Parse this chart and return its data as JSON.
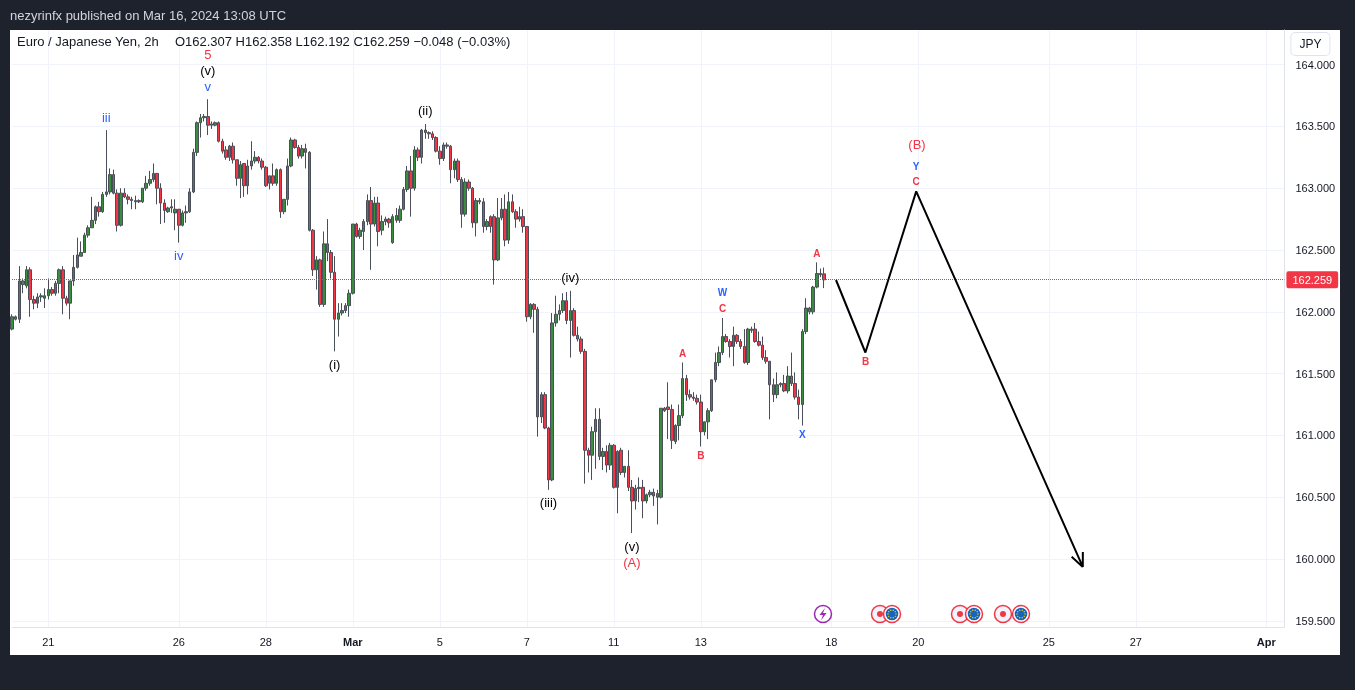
{
  "chart_data": {
    "type": "candlestick",
    "title": "Euro / Japanese Yen, 2h",
    "subtitle": "O162.307 H162.358 L162.192 C162.259 −0.048 (−0.03%)",
    "ylabel": "JPY",
    "annotations": [
      "nezyrinfx published on Mar 16, 2024 13:08 UTC",
      {
        "text": "iii",
        "y": 163.47
      },
      {
        "text": "iv",
        "y": 162.56
      },
      {
        "text": "v",
        "y": 163.72
      },
      {
        "text": "(v)",
        "y": 163.72
      },
      {
        "text": "5",
        "y": 163.72
      },
      {
        "text": "(i)",
        "y": 161.68
      },
      {
        "text": "(ii)",
        "y": 163.52
      },
      {
        "text": "(iii)",
        "y": 160.56
      },
      {
        "text": "(iv)",
        "y": 162.17
      },
      {
        "text": "(v)",
        "y": 160.21
      },
      {
        "text": "(A)",
        "y": 160.21
      },
      {
        "text": "A",
        "y": 161.59
      },
      {
        "text": "B",
        "y": 160.91
      },
      {
        "text": "C",
        "y": 161.95
      },
      {
        "text": "W",
        "y": 161.95
      },
      {
        "text": "X",
        "y": 161.08
      },
      {
        "text": "A",
        "y": 162.4
      },
      "B",
      "C",
      "Y",
      "(B)"
    ],
    "categories": [
      null,
      null,
      null,
      null,
      null,
      null,
      null,
      null,
      null,
      null,
      "21",
      null,
      null,
      null,
      null,
      null,
      null,
      null,
      null,
      null,
      null,
      null,
      null,
      null,
      null,
      null,
      null,
      null,
      null,
      null,
      null,
      null,
      null,
      null,
      null,
      null,
      null,
      null,
      null,
      null,
      null,
      null,
      null,
      null,
      null,
      null,
      "26",
      null,
      null,
      null,
      null,
      null,
      null,
      null,
      null,
      null,
      null,
      null,
      null,
      null,
      null,
      null,
      null,
      null,
      null,
      null,
      null,
      null,
      null,
      null,
      "28",
      null,
      null,
      null,
      null,
      null,
      null,
      null,
      null,
      null,
      null,
      null,
      null,
      null,
      null,
      null,
      null,
      null,
      null,
      null,
      null,
      null,
      null,
      null,
      "Mar",
      null,
      null,
      null,
      null,
      null,
      null,
      null,
      null,
      null,
      null,
      null,
      null,
      null,
      null,
      null,
      null,
      null,
      null,
      null,
      null,
      null,
      null,
      null,
      "5",
      null,
      null,
      null,
      null,
      null,
      null,
      null,
      null,
      null,
      null,
      null,
      null,
      null,
      null,
      null,
      null,
      null,
      null,
      null,
      null,
      null,
      null,
      null,
      "7",
      null,
      null,
      null,
      null,
      null,
      null,
      null,
      null,
      null,
      null,
      null,
      null,
      null,
      null,
      null,
      null,
      null,
      null,
      null,
      null,
      null,
      null,
      null,
      "11",
      null,
      null,
      null,
      null,
      null,
      null,
      null,
      null,
      null,
      null,
      null,
      null,
      null,
      null,
      null,
      null,
      null,
      null,
      null,
      null,
      null,
      null,
      null,
      "13",
      null,
      null,
      null,
      null,
      null,
      null,
      null,
      null,
      null,
      null,
      null,
      null,
      null,
      null,
      null,
      null,
      null,
      null,
      null,
      null,
      null,
      null,
      null,
      null,
      null,
      null,
      null,
      null,
      null,
      null,
      null,
      null,
      null,
      null,
      null,
      "18",
      null,
      null,
      null,
      null,
      null,
      null,
      null,
      null,
      null,
      null,
      null,
      null,
      null,
      null,
      null,
      null,
      null,
      null,
      null,
      null,
      null,
      null,
      null,
      "20",
      null,
      null,
      null,
      null,
      null,
      null,
      null,
      null,
      null,
      null,
      null,
      null,
      null,
      null,
      null,
      null,
      null,
      null,
      null,
      null,
      null,
      null,
      null,
      null,
      null,
      null,
      null,
      null,
      null,
      null,
      null,
      null,
      null,
      null,
      null,
      "25",
      null,
      null,
      null,
      null,
      null,
      null,
      null,
      null,
      null,
      null,
      null,
      null,
      null,
      null,
      null,
      null,
      null,
      null,
      null,
      null,
      null,
      null,
      null,
      "27",
      null,
      null,
      null,
      null,
      null,
      null,
      null,
      null,
      null,
      null,
      null,
      null,
      null,
      null,
      null,
      null,
      null,
      null,
      null,
      null,
      null,
      null,
      null,
      null,
      null,
      null,
      null,
      null,
      null,
      null,
      null,
      null,
      null,
      null,
      null,
      "Apr",
      null,
      null,
      null,
      null,
      null
    ],
    "ohlc": [
      [
        161.86,
        161.98,
        161.85,
        161.96
      ],
      [
        161.96,
        161.97,
        161.93,
        161.94
      ],
      [
        161.94,
        162.37,
        161.91,
        162.25
      ],
      [
        162.22,
        162.27,
        162.15,
        162.25
      ],
      [
        162.21,
        162.37,
        162.19,
        162.34
      ],
      [
        162.34,
        162.36,
        161.96,
        162.1
      ],
      [
        162.1,
        162.13,
        162.02,
        162.07
      ],
      [
        162.07,
        162.15,
        162.03,
        162.12
      ],
      [
        162.12,
        162.15,
        162.08,
        162.13
      ],
      [
        162.11,
        162.19,
        162.03,
        162.13
      ],
      [
        162.13,
        162.27,
        162.1,
        162.18
      ],
      [
        162.18,
        162.2,
        162.13,
        162.15
      ],
      [
        162.15,
        162.25,
        162.13,
        162.23
      ],
      [
        162.23,
        162.35,
        162.15,
        162.34
      ],
      [
        162.34,
        162.37,
        161.98,
        162.11
      ],
      [
        162.11,
        162.13,
        162.05,
        162.07
      ],
      [
        162.07,
        162.25,
        161.94,
        162.25
      ],
      [
        162.25,
        162.46,
        162.21,
        162.36
      ],
      [
        162.36,
        162.6,
        162.35,
        162.46
      ],
      [
        162.45,
        162.57,
        162.45,
        162.48
      ],
      [
        162.48,
        162.64,
        162.48,
        162.62
      ],
      [
        162.62,
        162.7,
        162.6,
        162.68
      ],
      [
        162.68,
        162.93,
        162.68,
        162.74
      ],
      [
        162.74,
        162.86,
        162.71,
        162.85
      ],
      [
        162.85,
        162.89,
        162.77,
        162.81
      ],
      [
        162.81,
        162.97,
        162.8,
        162.95
      ],
      [
        162.95,
        163.47,
        162.93,
        162.97
      ],
      [
        162.97,
        163.16,
        162.95,
        163.11
      ],
      [
        163.11,
        163.15,
        162.95,
        162.96
      ],
      [
        162.96,
        162.99,
        162.65,
        162.7
      ],
      [
        162.7,
        163.0,
        162.69,
        162.96
      ],
      [
        162.96,
        163.0,
        162.92,
        162.93
      ],
      [
        162.93,
        162.95,
        162.87,
        162.91
      ],
      [
        162.91,
        162.93,
        162.83,
        162.9
      ],
      [
        162.89,
        162.94,
        162.83,
        162.9
      ],
      [
        162.9,
        162.91,
        162.88,
        162.89
      ],
      [
        162.89,
        163.0,
        162.88,
        163.0
      ],
      [
        163.0,
        163.1,
        162.98,
        163.04
      ],
      [
        163.04,
        163.14,
        163.02,
        163.07
      ],
      [
        163.07,
        163.2,
        163.05,
        163.12
      ],
      [
        163.12,
        163.12,
        162.87,
        163.0
      ],
      [
        163.0,
        163.04,
        162.71,
        162.88
      ],
      [
        162.88,
        162.91,
        162.72,
        162.82
      ],
      [
        162.81,
        162.85,
        162.8,
        162.84
      ],
      [
        162.85,
        162.91,
        162.8,
        162.84
      ],
      [
        162.8,
        162.91,
        162.66,
        162.83
      ],
      [
        162.83,
        162.83,
        162.56,
        162.7
      ],
      [
        162.7,
        162.82,
        162.69,
        162.8
      ],
      [
        162.8,
        162.86,
        162.72,
        162.81
      ],
      [
        162.81,
        163.0,
        162.8,
        162.97
      ],
      [
        162.97,
        163.32,
        162.96,
        163.29
      ],
      [
        163.29,
        163.54,
        163.26,
        163.53
      ],
      [
        163.53,
        163.6,
        163.41,
        163.57
      ],
      [
        163.57,
        163.6,
        163.54,
        163.58
      ],
      [
        163.58,
        163.72,
        163.43,
        163.51
      ],
      [
        163.52,
        163.54,
        163.48,
        163.51
      ],
      [
        163.51,
        163.54,
        163.5,
        163.53
      ],
      [
        163.53,
        163.54,
        163.37,
        163.38
      ],
      [
        163.38,
        163.4,
        163.28,
        163.3
      ],
      [
        163.31,
        163.34,
        163.23,
        163.25
      ],
      [
        163.25,
        163.35,
        163.22,
        163.34
      ],
      [
        163.34,
        163.37,
        163.2,
        163.23
      ],
      [
        163.23,
        163.23,
        163.02,
        163.08
      ],
      [
        163.08,
        163.22,
        162.92,
        163.19
      ],
      [
        163.2,
        163.2,
        162.93,
        163.02
      ],
      [
        163.02,
        163.23,
        162.95,
        163.18
      ],
      [
        163.18,
        163.38,
        163.15,
        163.22
      ],
      [
        163.22,
        163.3,
        163.2,
        163.25
      ],
      [
        163.25,
        163.26,
        163.2,
        163.22
      ],
      [
        163.22,
        163.24,
        163.15,
        163.17
      ],
      [
        163.17,
        163.18,
        163.01,
        163.02
      ],
      [
        163.1,
        163.1,
        162.99,
        163.04
      ],
      [
        163.1,
        163.2,
        163.02,
        163.04
      ],
      [
        163.04,
        163.16,
        163.02,
        163.15
      ],
      [
        163.15,
        163.16,
        162.76,
        162.81
      ],
      [
        162.81,
        162.91,
        162.79,
        162.91
      ],
      [
        162.91,
        163.24,
        162.86,
        163.18
      ],
      [
        163.18,
        163.41,
        163.17,
        163.39
      ],
      [
        163.39,
        163.4,
        163.32,
        163.33
      ],
      [
        163.33,
        163.35,
        163.24,
        163.26
      ],
      [
        163.26,
        163.35,
        163.24,
        163.32
      ],
      [
        163.32,
        163.36,
        163.16,
        163.29
      ],
      [
        163.29,
        163.3,
        162.65,
        162.66
      ],
      [
        162.66,
        162.67,
        162.29,
        162.34
      ],
      [
        162.34,
        162.45,
        162.18,
        162.42
      ],
      [
        162.42,
        162.43,
        162.04,
        162.06
      ],
      [
        162.06,
        162.65,
        162.04,
        162.55
      ],
      [
        162.55,
        162.75,
        162.41,
        162.48
      ],
      [
        162.48,
        162.5,
        162.27,
        162.32
      ],
      [
        162.32,
        162.45,
        161.68,
        161.94
      ],
      [
        161.94,
        162.07,
        161.8,
        161.99
      ],
      [
        161.99,
        162.07,
        161.97,
        162.01
      ],
      [
        162.01,
        162.07,
        161.99,
        162.05
      ],
      [
        162.05,
        162.18,
        161.96,
        162.15
      ],
      [
        162.15,
        162.71,
        162.14,
        162.71
      ],
      [
        162.71,
        162.72,
        162.6,
        162.61
      ],
      [
        162.61,
        162.68,
        162.59,
        162.66
      ],
      [
        162.65,
        162.75,
        162.5,
        162.73
      ],
      [
        162.73,
        162.95,
        162.7,
        162.9
      ],
      [
        162.9,
        163.01,
        162.34,
        162.71
      ],
      [
        162.71,
        162.93,
        162.69,
        162.88
      ],
      [
        162.88,
        162.93,
        162.53,
        162.65
      ],
      [
        162.66,
        162.78,
        162.62,
        162.73
      ],
      [
        162.75,
        162.77,
        162.7,
        162.73
      ],
      [
        162.75,
        162.76,
        162.68,
        162.72
      ],
      [
        162.56,
        162.79,
        162.55,
        162.77
      ],
      [
        162.74,
        162.84,
        162.72,
        162.78
      ],
      [
        162.74,
        162.86,
        162.72,
        162.83
      ],
      [
        162.83,
        163.01,
        162.82,
        162.99
      ],
      [
        162.99,
        163.18,
        162.97,
        163.14
      ],
      [
        163.14,
        163.26,
        162.77,
        163.0
      ],
      [
        163.0,
        163.34,
        162.98,
        163.31
      ],
      [
        163.31,
        163.33,
        163.22,
        163.25
      ],
      [
        163.25,
        163.48,
        163.2,
        163.47
      ],
      [
        163.47,
        163.52,
        163.4,
        163.45
      ],
      [
        163.45,
        163.46,
        163.4,
        163.44
      ],
      [
        163.44,
        163.46,
        163.39,
        163.41
      ],
      [
        163.41,
        163.42,
        163.29,
        163.3
      ],
      [
        163.3,
        163.34,
        163.19,
        163.24
      ],
      [
        163.24,
        163.37,
        163.22,
        163.35
      ],
      [
        163.35,
        163.37,
        163.32,
        163.34
      ],
      [
        163.34,
        163.35,
        163.04,
        163.15
      ],
      [
        163.15,
        163.24,
        163.08,
        163.22
      ],
      [
        163.22,
        163.24,
        163.05,
        163.07
      ],
      [
        163.07,
        163.09,
        162.68,
        162.79
      ],
      [
        162.79,
        163.08,
        162.77,
        163.05
      ],
      [
        163.05,
        163.07,
        162.98,
        163.0
      ],
      [
        163.0,
        163.01,
        162.68,
        162.72
      ],
      [
        162.72,
        162.92,
        162.61,
        162.9
      ],
      [
        162.9,
        162.92,
        162.87,
        162.89
      ],
      [
        162.89,
        162.92,
        162.64,
        162.69
      ],
      [
        162.69,
        162.75,
        162.66,
        162.73
      ],
      [
        162.77,
        162.78,
        162.64,
        162.69
      ],
      [
        162.77,
        162.79,
        162.22,
        162.42
      ],
      [
        162.42,
        162.92,
        162.41,
        162.76
      ],
      [
        162.76,
        162.92,
        162.74,
        162.83
      ],
      [
        162.83,
        162.95,
        162.53,
        162.58
      ],
      [
        162.58,
        162.97,
        162.55,
        162.89
      ],
      [
        162.89,
        162.95,
        162.8,
        162.81
      ],
      [
        162.81,
        162.83,
        162.68,
        162.75
      ],
      [
        162.75,
        162.85,
        162.73,
        162.77
      ],
      [
        162.77,
        162.83,
        162.64,
        162.69
      ],
      [
        162.69,
        162.69,
        161.92,
        161.96
      ],
      [
        161.96,
        162.07,
        161.94,
        162.06
      ],
      [
        162.06,
        162.07,
        161.83,
        162.02
      ],
      [
        162.02,
        162.04,
        160.99,
        161.15
      ],
      [
        161.15,
        161.35,
        161.1,
        161.33
      ],
      [
        161.33,
        161.35,
        161.05,
        161.06
      ],
      [
        161.06,
        161.07,
        160.56,
        160.64
      ],
      [
        160.64,
        161.99,
        160.63,
        161.91
      ],
      [
        161.91,
        162.13,
        161.88,
        161.98
      ],
      [
        161.98,
        162.06,
        161.93,
        162.01
      ],
      [
        162.01,
        162.15,
        161.99,
        162.09
      ],
      [
        162.09,
        162.16,
        161.9,
        161.93
      ],
      [
        161.93,
        162.17,
        161.63,
        162.01
      ],
      [
        162.01,
        162.03,
        161.8,
        161.81
      ],
      [
        161.81,
        161.88,
        161.76,
        161.78
      ],
      [
        161.78,
        161.8,
        161.66,
        161.68
      ],
      [
        161.68,
        161.7,
        160.61,
        160.88
      ],
      [
        160.88,
        160.9,
        160.7,
        160.84
      ],
      [
        160.84,
        161.07,
        160.64,
        161.03
      ],
      [
        161.03,
        161.22,
        160.73,
        161.13
      ],
      [
        161.13,
        161.22,
        160.8,
        160.83
      ],
      [
        160.83,
        160.9,
        160.72,
        160.87
      ],
      [
        160.87,
        160.92,
        160.7,
        160.76
      ],
      [
        160.76,
        160.94,
        160.72,
        160.92
      ],
      [
        160.92,
        160.93,
        160.57,
        160.58
      ],
      [
        160.58,
        160.88,
        160.37,
        160.87
      ],
      [
        160.88,
        160.9,
        160.68,
        160.7
      ],
      [
        160.7,
        160.75,
        160.66,
        160.75
      ],
      [
        160.75,
        160.88,
        160.55,
        160.58
      ],
      [
        160.58,
        160.64,
        160.21,
        160.47
      ],
      [
        160.47,
        160.6,
        160.4,
        160.57
      ],
      [
        160.57,
        160.66,
        160.46,
        160.58
      ],
      [
        160.58,
        160.64,
        160.33,
        160.47
      ],
      [
        160.47,
        160.53,
        160.45,
        160.52
      ],
      [
        160.52,
        160.56,
        160.5,
        160.54
      ],
      [
        160.54,
        160.57,
        160.43,
        160.51
      ],
      [
        160.53,
        160.56,
        160.28,
        160.5
      ],
      [
        160.5,
        161.22,
        160.49,
        161.22
      ],
      [
        161.22,
        161.23,
        161.19,
        161.2
      ],
      [
        161.23,
        161.43,
        160.97,
        161.21
      ],
      [
        161.21,
        161.25,
        160.89,
        160.96
      ],
      [
        160.95,
        161.09,
        160.93,
        161.08
      ],
      [
        161.08,
        161.25,
        160.96,
        161.16
      ],
      [
        161.16,
        161.59,
        161.14,
        161.46
      ],
      [
        161.46,
        161.49,
        161.28,
        161.33
      ],
      [
        161.33,
        161.37,
        161.29,
        161.31
      ],
      [
        161.31,
        161.35,
        161.28,
        161.3
      ],
      [
        161.3,
        161.33,
        161.25,
        161.27
      ],
      [
        161.27,
        161.33,
        160.91,
        161.03
      ],
      [
        161.03,
        161.11,
        161.0,
        161.11
      ],
      [
        161.11,
        161.22,
        160.97,
        161.2
      ],
      [
        161.2,
        161.45,
        161.19,
        161.45
      ],
      [
        161.45,
        161.67,
        161.43,
        161.59
      ],
      [
        161.59,
        161.72,
        161.56,
        161.67
      ],
      [
        161.67,
        161.95,
        161.65,
        161.8
      ],
      [
        161.8,
        161.82,
        161.75,
        161.76
      ],
      [
        161.76,
        161.78,
        161.63,
        161.72
      ],
      [
        161.72,
        161.88,
        161.56,
        161.81
      ],
      [
        161.81,
        161.82,
        161.74,
        161.76
      ],
      [
        161.76,
        161.78,
        161.7,
        161.72
      ],
      [
        161.72,
        161.86,
        161.58,
        161.59
      ],
      [
        161.59,
        161.87,
        161.57,
        161.86
      ],
      [
        161.85,
        161.88,
        161.83,
        161.86
      ],
      [
        161.86,
        161.91,
        161.75,
        161.76
      ],
      [
        161.76,
        161.84,
        161.72,
        161.73
      ],
      [
        161.73,
        161.8,
        161.61,
        161.63
      ],
      [
        161.63,
        161.69,
        161.58,
        161.6
      ],
      [
        161.6,
        161.6,
        161.13,
        161.41
      ],
      [
        161.41,
        161.46,
        161.27,
        161.33
      ],
      [
        161.33,
        161.51,
        161.3,
        161.41
      ],
      [
        161.41,
        161.43,
        161.39,
        161.42
      ],
      [
        161.42,
        161.49,
        161.35,
        161.36
      ],
      [
        161.36,
        161.56,
        161.34,
        161.48
      ],
      [
        161.48,
        161.67,
        161.4,
        161.42
      ],
      [
        161.42,
        161.51,
        161.29,
        161.31
      ],
      [
        161.31,
        161.37,
        161.13,
        161.25
      ],
      [
        161.25,
        161.86,
        161.08,
        161.84
      ],
      [
        161.84,
        162.11,
        161.82,
        162.03
      ],
      [
        162.03,
        162.04,
        161.98,
        162.0
      ],
      [
        162.0,
        162.21,
        161.98,
        162.2
      ],
      [
        162.2,
        162.4,
        162.19,
        162.31
      ],
      [
        162.3,
        162.35,
        162.28,
        162.31
      ],
      [
        162.307,
        162.358,
        162.192,
        162.259
      ],
      null,
      null,
      null,
      null,
      null,
      null,
      null,
      null,
      null,
      null,
      null,
      null,
      null,
      null,
      null,
      null,
      null,
      null,
      null,
      null,
      null,
      null,
      null,
      null,
      null,
      null,
      null,
      null,
      null,
      null,
      null,
      null,
      null,
      null,
      null,
      null,
      null,
      null,
      null,
      null,
      null,
      null,
      null,
      null,
      null,
      null,
      null,
      null,
      null,
      null,
      null,
      null,
      null,
      null,
      null,
      null,
      null,
      null,
      null,
      null,
      null,
      null,
      null,
      null,
      null,
      null,
      null,
      null,
      null,
      null,
      null,
      null,
      null,
      null,
      null,
      null,
      null,
      null,
      null,
      null,
      null,
      null,
      null,
      null,
      null,
      null,
      null,
      null,
      null,
      null,
      null,
      null,
      null,
      null,
      null,
      null,
      null,
      null,
      null,
      null,
      null,
      null,
      null,
      null,
      null,
      null,
      null,
      null,
      null,
      null,
      null,
      null,
      null,
      null,
      null,
      null,
      null,
      null,
      null,
      null,
      null,
      null,
      null,
      null,
      null,
      null,
      null
    ],
    "colors": [
      "#388e3c",
      "#f23645",
      "#388e3c",
      "#388e3c",
      "#388e3c",
      "#f23645",
      "#f23645",
      "#388e3c",
      "#388e3c",
      "#388e3c",
      "#388e3c",
      "#f23645",
      "#388e3c",
      "#388e3c",
      "#f23645",
      "#f23645",
      "#388e3c",
      "#388e3c",
      "#388e3c",
      "#388e3c",
      "#388e3c",
      "#388e3c",
      "#388e3c",
      "#388e3c",
      "#f23645",
      "#388e3c",
      "#388e3c",
      "#388e3c",
      "#f23645",
      "#f23645",
      "#388e3c",
      "#f23645",
      "#f23645",
      "#f23645",
      "#388e3c",
      "#f23645",
      "#388e3c",
      "#388e3c",
      "#388e3c",
      "#388e3c",
      "#f23645",
      "#f23645",
      "#f23645",
      "#388e3c",
      "#f23645",
      "#388e3c",
      "#f23645",
      "#388e3c",
      "#388e3c",
      "#388e3c",
      "#388e3c",
      "#388e3c",
      "#388e3c",
      "#388e3c",
      "#f23645",
      "#f23645",
      "#388e3c",
      "#f23645",
      "#f23645",
      "#f23645",
      "#388e3c",
      "#f23645",
      "#f23645",
      "#388e3c",
      "#f23645",
      "#388e3c",
      "#388e3c",
      "#388e3c",
      "#f23645",
      "#f23645",
      "#f23645",
      "#f23645",
      "#f23645",
      "#388e3c",
      "#f23645",
      "#388e3c",
      "#388e3c",
      "#388e3c",
      "#f23645",
      "#f23645",
      "#388e3c",
      "#f23645",
      "#f23645",
      "#f23645",
      "#388e3c",
      "#f23645",
      "#388e3c",
      "#f23645",
      "#f23645",
      "#f23645",
      "#388e3c",
      "#388e3c",
      "#388e3c",
      "#388e3c",
      "#388e3c",
      "#f23645",
      "#388e3c",
      "#388e3c",
      "#388e3c",
      "#f23645",
      "#388e3c",
      "#f23645",
      "#388e3c",
      "#f23645",
      "#f23645",
      "#388e3c",
      "#388e3c",
      "#388e3c",
      "#388e3c",
      "#388e3c",
      "#f23645",
      "#388e3c",
      "#f23645",
      "#388e3c",
      "#f23645",
      "#f23645",
      "#f23645",
      "#f23645",
      "#f23645",
      "#388e3c",
      "#f23645",
      "#f23645",
      "#388e3c",
      "#f23645",
      "#f23645",
      "#388e3c",
      "#f23645",
      "#f23645",
      "#388e3c",
      "#f23645",
      "#f23645",
      "#388e3c",
      "#f23645",
      "#f23645",
      "#388e3c",
      "#388e3c",
      "#f23645",
      "#388e3c",
      "#f23645",
      "#f23645",
      "#388e3c",
      "#f23645",
      "#f23645",
      "#388e3c",
      "#f23645",
      "#f23645",
      "#388e3c",
      "#f23645",
      "#f23645",
      "#388e3c",
      "#388e3c",
      "#388e3c",
      "#388e3c",
      "#f23645",
      "#388e3c",
      "#f23645",
      "#f23645",
      "#f23645",
      "#f23645",
      "#f23645",
      "#388e3c",
      "#388e3c",
      "#f23645",
      "#388e3c",
      "#f23645",
      "#388e3c",
      "#f23645",
      "#388e3c",
      "#f23645",
      "#388e3c",
      "#f23645",
      "#f23645",
      "#388e3c",
      "#388e3c",
      "#f23645",
      "#388e3c",
      "#388e3c",
      "#f23645",
      "#f23645",
      "#388e3c",
      "#f23645",
      "#f23645",
      "#f23645",
      "#388e3c",
      "#388e3c",
      "#388e3c",
      "#f23645",
      "#f23645",
      "#f23645",
      "#f23645",
      "#f23645",
      "#388e3c",
      "#388e3c",
      "#388e3c",
      "#388e3c",
      "#388e3c",
      "#388e3c",
      "#f23645",
      "#f23645",
      "#388e3c",
      "#f23645",
      "#f23645",
      "#f23645",
      "#388e3c",
      "#388e3c",
      "#f23645",
      "#f23645",
      "#f23645",
      "#f23645",
      "#f23645",
      "#f23645",
      "#388e3c",
      "#388e3c",
      "#f23645",
      "#388e3c",
      "#f23645",
      "#f23645",
      "#f23645",
      "#388e3c",
      "#388e3c",
      "#f23645",
      "#388e3c",
      "#388e3c",
      "#388e3c",
      "#f23645",
      null,
      null,
      null,
      null,
      null,
      null,
      null,
      null,
      null,
      null,
      null,
      null,
      null,
      null,
      null,
      null,
      null,
      null,
      null,
      null,
      null,
      null,
      null,
      null,
      null,
      null,
      null,
      null,
      null,
      null,
      null,
      null,
      null,
      null,
      null,
      null,
      null,
      null,
      null,
      null,
      null,
      null,
      null,
      null,
      null,
      null,
      null,
      null,
      null,
      null,
      null,
      null,
      null,
      null,
      null,
      null,
      null,
      null,
      null,
      null,
      null,
      null,
      null,
      null,
      null,
      null,
      null,
      null,
      null,
      null,
      null,
      null,
      null,
      null,
      null,
      null,
      null,
      null,
      null,
      null,
      null,
      null,
      null,
      null,
      null,
      null,
      null,
      null,
      null,
      null,
      null,
      null,
      null,
      null,
      null,
      null,
      null,
      null,
      null,
      null,
      null,
      null,
      null,
      null,
      null,
      null,
      null,
      null,
      null,
      null,
      null,
      null,
      null,
      null,
      null,
      null,
      null,
      null,
      null,
      null,
      null,
      null,
      null,
      null,
      null,
      null,
      null
    ],
    "ylim": [
      159.45,
      164.28
    ],
    "yticks": [
      {
        "value": 159.5,
        "label": "159.500"
      },
      {
        "value": 160,
        "label": "160.000"
      },
      {
        "value": 160.5,
        "label": "160.500"
      },
      {
        "value": 161,
        "label": "161.000"
      },
      {
        "value": 161.5,
        "label": "161.500"
      },
      {
        "value": 162,
        "label": "162.000"
      },
      {
        "value": 162.5,
        "label": "162.500"
      },
      {
        "value": 163,
        "label": "163.000"
      },
      {
        "value": 163.5,
        "label": "163.500"
      },
      {
        "value": 164,
        "label": "164.000"
      }
    ],
    "grid": true,
    "ref_lines": [
      {
        "axis": "y",
        "value": 162.259,
        "label": "162.259",
        "color": "#f23645",
        "line_style": "dotted"
      }
    ]
  }
}
